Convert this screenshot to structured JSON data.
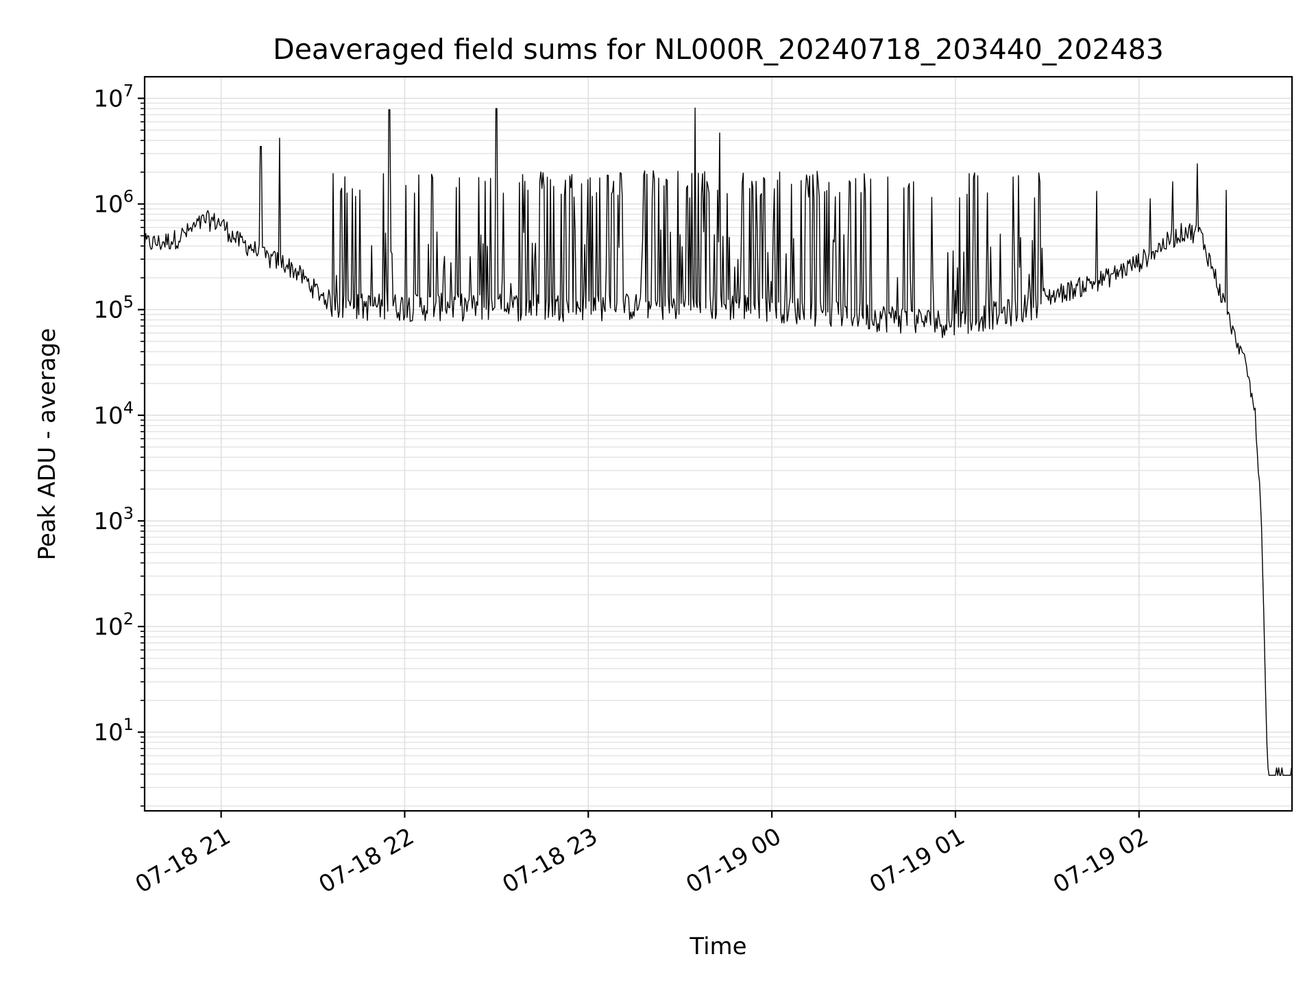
{
  "chart_data": {
    "type": "line",
    "title": "Deaveraged field sums for NL000R_20240718_203440_202483",
    "xlabel": "Time",
    "ylabel": "Peak ADU - average",
    "yscale": "log",
    "ylim": [
      1.8,
      16000000
    ],
    "xlim": [
      "07-18 20:35",
      "07-19 02:50"
    ],
    "x_ticks": [
      "07-18 21",
      "07-18 22",
      "07-18 23",
      "07-19 00",
      "07-19 01",
      "07-19 02"
    ],
    "y_ticks": [
      {
        "base": "10",
        "exp": "1",
        "value": 10
      },
      {
        "base": "10",
        "exp": "2",
        "value": 100
      },
      {
        "base": "10",
        "exp": "3",
        "value": 1000
      },
      {
        "base": "10",
        "exp": "4",
        "value": 10000
      },
      {
        "base": "10",
        "exp": "5",
        "value": 100000
      },
      {
        "base": "10",
        "exp": "6",
        "value": 1000000
      },
      {
        "base": "10",
        "exp": "7",
        "value": 10000000
      }
    ],
    "grid": true,
    "line_color": "#000000",
    "series": [
      {
        "x": [
          "07-18 20:35",
          "07-18 20:40",
          "07-18 20:45",
          "07-18 20:50",
          "07-18 20:55",
          "07-18 21:00",
          "07-18 21:05",
          "07-18 21:10",
          "07-18 21:15",
          "07-18 21:20",
          "07-18 21:25",
          "07-18 21:30",
          "07-18 21:35",
          "07-18 21:40",
          "07-18 21:45",
          "07-18 21:50",
          "07-18 21:55",
          "07-18 22:00",
          "07-18 22:10",
          "07-18 22:20",
          "07-18 22:30",
          "07-18 22:40",
          "07-18 22:50",
          "07-18 23:00",
          "07-18 23:10",
          "07-18 23:20",
          "07-18 23:30",
          "07-18 23:40",
          "07-18 23:50",
          "07-19 00:00",
          "07-19 00:10",
          "07-19 00:20",
          "07-19 00:30",
          "07-19 00:40",
          "07-19 00:50",
          "07-19 01:00",
          "07-19 01:10",
          "07-19 01:20",
          "07-19 01:30",
          "07-19 01:40",
          "07-19 01:50",
          "07-19 02:00",
          "07-19 02:05",
          "07-19 02:10",
          "07-19 02:15",
          "07-19 02:20",
          "07-19 02:25",
          "07-19 02:30",
          "07-19 02:35",
          "07-19 02:38",
          "07-19 02:40",
          "07-19 02:42",
          "07-19 02:45",
          "07-19 02:50"
        ],
        "y": [
          420000,
          420000,
          460000,
          550000,
          700000,
          650000,
          450000,
          380000,
          300000,
          280000,
          220000,
          160000,
          120000,
          110000,
          110000,
          110000,
          110000,
          110000,
          110000,
          110000,
          110000,
          110000,
          110000,
          110000,
          110000,
          110000,
          110000,
          110000,
          110000,
          110000,
          100000,
          95000,
          90000,
          85000,
          80000,
          75000,
          90000,
          100000,
          130000,
          160000,
          200000,
          280000,
          350000,
          450000,
          550000,
          520000,
          200000,
          70000,
          30000,
          10000,
          1000,
          4,
          4,
          4
        ]
      }
    ],
    "spikes": [
      {
        "x": "07-18 21:13",
        "y": 3500000
      },
      {
        "x": "07-18 21:19",
        "y": 4200000
      },
      {
        "x": "07-18 21:55",
        "y": 7800000
      },
      {
        "x": "07-18 22:30",
        "y": 8000000
      },
      {
        "x": "07-18 23:35",
        "y": 8100000
      },
      {
        "x": "07-18 23:43",
        "y": 4700000
      },
      {
        "x": "07-19 02:19",
        "y": 2400000
      }
    ],
    "oscillation_band": {
      "x_range": [
        "07-18 21:35",
        "07-19 01:30"
      ],
      "high": 1900000,
      "low": 80000
    }
  }
}
